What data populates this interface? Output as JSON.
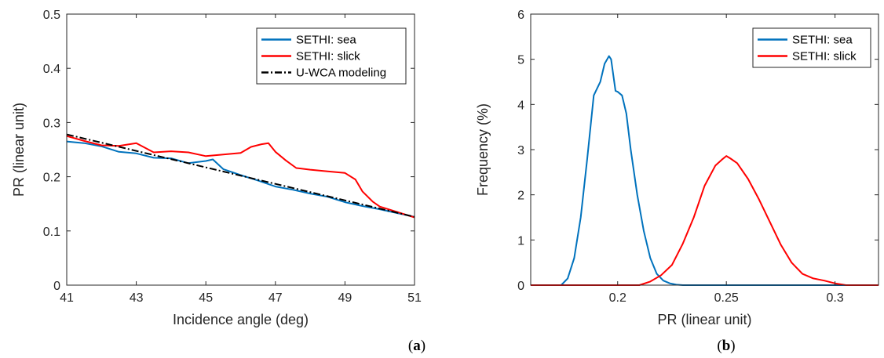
{
  "captions": {
    "a_open": "(",
    "a_letter": "a",
    "a_close": ")",
    "b_open": "(",
    "b_letter": "b",
    "b_close": ")"
  },
  "colors": {
    "sea": "#0072BD",
    "slick": "#FF0000",
    "model": "#000000",
    "axis": "#262626",
    "grid": "#e6e6e6"
  },
  "chart_data": [
    {
      "type": "line",
      "panel": "a",
      "xlabel": "Incidence angle (deg)",
      "ylabel": "PR (linear unit)",
      "xlim": [
        41,
        51
      ],
      "ylim": [
        0,
        0.5
      ],
      "xticks": [
        "41",
        "43",
        "45",
        "47",
        "49",
        "51"
      ],
      "yticks": [
        "0",
        "0.1",
        "0.2",
        "0.3",
        "0.4",
        "0.5"
      ],
      "legend_position": "top-right",
      "series": [
        {
          "name": "SETHI: sea",
          "color_key": "sea",
          "style": "solid",
          "x": [
            41.0,
            41.5,
            42.0,
            42.5,
            43.0,
            43.5,
            44.0,
            44.5,
            45.0,
            45.2,
            45.5,
            46.0,
            46.5,
            47.0,
            47.5,
            48.0,
            48.5,
            49.0,
            49.5,
            50.0,
            50.5,
            51.0
          ],
          "y": [
            0.265,
            0.262,
            0.256,
            0.246,
            0.243,
            0.235,
            0.234,
            0.225,
            0.229,
            0.232,
            0.214,
            0.203,
            0.193,
            0.182,
            0.176,
            0.169,
            0.163,
            0.153,
            0.146,
            0.14,
            0.133,
            0.126
          ]
        },
        {
          "name": "SETHI: slick",
          "color_key": "slick",
          "style": "solid",
          "x": [
            41.0,
            41.5,
            42.0,
            42.5,
            43.0,
            43.5,
            44.0,
            44.5,
            45.0,
            45.5,
            46.0,
            46.3,
            46.6,
            46.8,
            47.0,
            47.3,
            47.6,
            48.0,
            48.5,
            49.0,
            49.3,
            49.5,
            49.8,
            50.0,
            50.5,
            51.0
          ],
          "y": [
            0.275,
            0.266,
            0.258,
            0.257,
            0.262,
            0.245,
            0.247,
            0.245,
            0.238,
            0.241,
            0.244,
            0.255,
            0.26,
            0.262,
            0.246,
            0.23,
            0.216,
            0.213,
            0.21,
            0.207,
            0.195,
            0.173,
            0.154,
            0.145,
            0.135,
            0.125
          ]
        },
        {
          "name": "U-WCA modeling",
          "color_key": "model",
          "style": "dashdot",
          "x": [
            41.0,
            51.0
          ],
          "y": [
            0.278,
            0.126
          ]
        }
      ]
    },
    {
      "type": "line",
      "panel": "b",
      "xlabel": "PR (linear unit)",
      "ylabel": "Frequency (%)",
      "xlim": [
        0.16,
        0.32
      ],
      "ylim": [
        0,
        6
      ],
      "xticks": [
        "0.2",
        "0.25",
        "0.3"
      ],
      "yticks": [
        "0",
        "1",
        "2",
        "3",
        "4",
        "5",
        "6"
      ],
      "legend_position": "top-right",
      "series": [
        {
          "name": "SETHI: sea",
          "color_key": "sea",
          "style": "solid",
          "x": [
            0.16,
            0.174,
            0.177,
            0.18,
            0.183,
            0.186,
            0.189,
            0.192,
            0.194,
            0.196,
            0.197,
            0.199,
            0.2,
            0.202,
            0.204,
            0.206,
            0.209,
            0.212,
            0.215,
            0.218,
            0.221,
            0.224,
            0.227,
            0.23,
            0.32
          ],
          "y": [
            0.0,
            0.0,
            0.15,
            0.6,
            1.5,
            2.8,
            4.2,
            4.5,
            4.9,
            5.07,
            5.0,
            4.3,
            4.28,
            4.2,
            3.8,
            3.0,
            2.0,
            1.2,
            0.6,
            0.25,
            0.1,
            0.04,
            0.01,
            0.0,
            0.0
          ]
        },
        {
          "name": "SETHI: slick",
          "color_key": "slick",
          "style": "solid",
          "x": [
            0.16,
            0.21,
            0.215,
            0.22,
            0.225,
            0.23,
            0.235,
            0.24,
            0.245,
            0.248,
            0.25,
            0.252,
            0.255,
            0.26,
            0.265,
            0.27,
            0.275,
            0.28,
            0.285,
            0.29,
            0.295,
            0.3,
            0.305,
            0.32
          ],
          "y": [
            0.0,
            0.0,
            0.08,
            0.22,
            0.45,
            0.92,
            1.5,
            2.2,
            2.65,
            2.78,
            2.86,
            2.8,
            2.7,
            2.35,
            1.9,
            1.4,
            0.9,
            0.5,
            0.25,
            0.15,
            0.1,
            0.04,
            0.0,
            0.0
          ]
        }
      ]
    }
  ]
}
